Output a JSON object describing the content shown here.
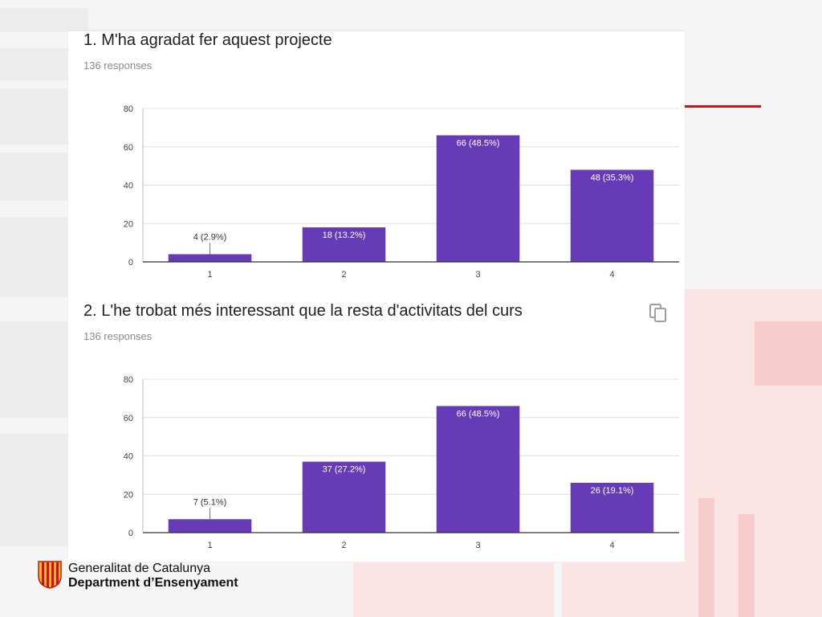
{
  "footer": {
    "org_name": "Generalitat de Catalunya",
    "department": "Department d’Ensenyament"
  },
  "colors": {
    "bar": "#673ab7",
    "logo_red": "#c0171c",
    "logo_yellow": "#f6c200"
  },
  "questions": [
    {
      "title": "1. M'ha agradat fer aquest projecte",
      "responses": "136 responses",
      "has_copy_icon": false
    },
    {
      "title": "2. L'he trobat més interessant que la resta d'activitats del curs",
      "responses": "136 responses",
      "has_copy_icon": true,
      "copy_icon": "copy-icon"
    }
  ],
  "chart_data": [
    {
      "type": "bar",
      "categories": [
        "1",
        "2",
        "3",
        "4"
      ],
      "values": [
        4,
        18,
        66,
        48
      ],
      "data_labels": [
        "4 (2.9%)",
        "18 (13.2%)",
        "66 (48.5%)",
        "48 (35.3%)"
      ],
      "yticks": [
        0,
        20,
        40,
        60,
        80
      ],
      "ylim": [
        0,
        80
      ],
      "grid": true
    },
    {
      "type": "bar",
      "categories": [
        "1",
        "2",
        "3",
        "4"
      ],
      "values": [
        7,
        37,
        66,
        26
      ],
      "data_labels": [
        "7 (5.1%)",
        "37 (27.2%)",
        "66 (48.5%)",
        "26 (19.1%)"
      ],
      "yticks": [
        0,
        20,
        40,
        60,
        80
      ],
      "ylim": [
        0,
        80
      ],
      "grid": true
    }
  ]
}
